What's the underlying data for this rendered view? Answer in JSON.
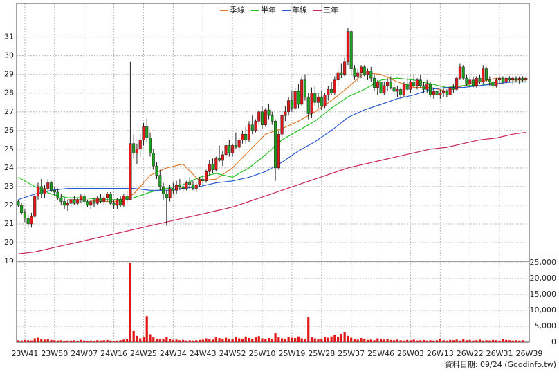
{
  "chart_data": {
    "type": "candlestick",
    "legend": [
      {
        "name": "季線",
        "color": "#e07828"
      },
      {
        "name": "半年",
        "color": "#22c322"
      },
      {
        "name": "年線",
        "color": "#2a5ad0"
      },
      {
        "name": "三年",
        "color": "#c8245e"
      }
    ],
    "source": "資料日期: 09/24 (Goodinfo.tw)",
    "up_color": "#e01818",
    "down_color": "#20a020",
    "xlim": [
      -0.5,
      155
    ],
    "xticks": [
      {
        "value": 2,
        "label": "23W41"
      },
      {
        "value": 11,
        "label": "23W50"
      },
      {
        "value": 20,
        "label": "24W07"
      },
      {
        "value": 29,
        "label": "24W16"
      },
      {
        "value": 38,
        "label": "24W25"
      },
      {
        "value": 47,
        "label": "24W34"
      },
      {
        "value": 56,
        "label": "24W43"
      },
      {
        "value": 65,
        "label": "24W52"
      },
      {
        "value": 74,
        "label": "25W10"
      },
      {
        "value": 83,
        "label": "25W19"
      },
      {
        "value": 92,
        "label": "25W28"
      },
      {
        "value": 101,
        "label": "25W37"
      },
      {
        "value": 110,
        "label": "25W46"
      },
      {
        "value": 119,
        "label": "26W03"
      },
      {
        "value": 128,
        "label": "26W13"
      },
      {
        "value": 137,
        "label": "26W22"
      },
      {
        "value": 146,
        "label": "26W31"
      },
      {
        "value": 155,
        "label": "26W39"
      }
    ],
    "ylim": [
      19,
      32.8
    ],
    "yticks": [
      19,
      20,
      21,
      22,
      23,
      24,
      25,
      26,
      27,
      28,
      29,
      30,
      31
    ],
    "y2lim": [
      0,
      25000
    ],
    "y2ticks": [
      {
        "value": 0,
        "label": "0"
      },
      {
        "value": 5000,
        "label": "5,000"
      },
      {
        "value": 10000,
        "label": "10,000"
      },
      {
        "value": 15000,
        "label": "15,000"
      },
      {
        "value": 20000,
        "label": "20,000"
      },
      {
        "value": 25000,
        "label": "25,000"
      }
    ],
    "grid": true,
    "ohlc": [
      [
        22.2,
        22.3,
        21.9,
        22.0
      ],
      [
        22.0,
        22.1,
        21.5,
        21.6
      ],
      [
        21.6,
        21.8,
        21.1,
        21.3
      ],
      [
        21.3,
        21.5,
        20.8,
        21.0
      ],
      [
        21.0,
        21.6,
        20.8,
        21.4
      ],
      [
        21.4,
        22.6,
        21.3,
        22.5
      ],
      [
        22.5,
        23.2,
        22.3,
        23.0
      ],
      [
        23.0,
        23.4,
        22.4,
        22.6
      ],
      [
        22.6,
        23.1,
        22.4,
        22.9
      ],
      [
        22.9,
        23.4,
        22.6,
        23.2
      ],
      [
        23.2,
        23.3,
        22.7,
        22.8
      ],
      [
        22.8,
        23.0,
        22.5,
        22.7
      ],
      [
        22.7,
        22.9,
        22.3,
        22.4
      ],
      [
        22.4,
        22.6,
        22.0,
        22.2
      ],
      [
        22.2,
        22.4,
        21.8,
        22.0
      ],
      [
        22.0,
        22.3,
        21.7,
        22.1
      ],
      [
        22.1,
        22.4,
        21.9,
        22.3
      ],
      [
        22.3,
        22.5,
        22.0,
        22.1
      ],
      [
        22.1,
        22.4,
        22.0,
        22.3
      ],
      [
        22.3,
        22.6,
        22.1,
        22.5
      ],
      [
        22.5,
        22.6,
        22.1,
        22.2
      ],
      [
        22.2,
        22.3,
        21.9,
        22.0
      ],
      [
        22.0,
        22.3,
        21.8,
        22.2
      ],
      [
        22.2,
        22.4,
        21.9,
        22.1
      ],
      [
        22.1,
        22.5,
        22.0,
        22.4
      ],
      [
        22.4,
        22.6,
        22.1,
        22.2
      ],
      [
        22.2,
        22.5,
        22.0,
        22.4
      ],
      [
        22.4,
        22.7,
        22.2,
        22.6
      ],
      [
        22.6,
        22.7,
        22.0,
        22.1
      ],
      [
        22.1,
        22.3,
        21.8,
        22.0
      ],
      [
        22.0,
        22.4,
        21.8,
        22.3
      ],
      [
        22.3,
        22.5,
        21.9,
        22.0
      ],
      [
        22.0,
        22.6,
        21.9,
        22.5
      ],
      [
        22.5,
        22.8,
        22.1,
        22.3
      ],
      [
        22.3,
        29.7,
        22.3,
        25.3
      ],
      [
        25.3,
        25.8,
        24.5,
        24.8
      ],
      [
        24.8,
        25.3,
        24.2,
        25.0
      ],
      [
        25.0,
        25.8,
        24.6,
        25.5
      ],
      [
        25.5,
        26.4,
        25.2,
        26.2
      ],
      [
        26.2,
        26.7,
        25.4,
        25.6
      ],
      [
        25.6,
        25.9,
        24.6,
        24.8
      ],
      [
        24.8,
        25.0,
        23.9,
        24.1
      ],
      [
        24.1,
        24.3,
        23.4,
        23.6
      ],
      [
        23.6,
        23.9,
        22.8,
        23.0
      ],
      [
        23.0,
        23.2,
        22.3,
        22.6
      ],
      [
        22.6,
        22.8,
        20.9,
        22.4
      ],
      [
        22.4,
        23.1,
        22.2,
        22.9
      ],
      [
        22.9,
        23.2,
        22.6,
        22.8
      ],
      [
        22.8,
        23.3,
        22.6,
        23.1
      ],
      [
        23.1,
        23.4,
        22.8,
        23.0
      ],
      [
        23.0,
        23.2,
        22.7,
        22.9
      ],
      [
        22.9,
        23.3,
        22.8,
        23.2
      ],
      [
        23.2,
        23.5,
        22.9,
        23.1
      ],
      [
        23.1,
        23.3,
        22.8,
        22.9
      ],
      [
        22.9,
        23.2,
        22.7,
        23.1
      ],
      [
        23.1,
        23.5,
        23.0,
        23.4
      ],
      [
        23.4,
        23.6,
        23.1,
        23.3
      ],
      [
        23.3,
        23.9,
        23.2,
        23.8
      ],
      [
        23.8,
        24.4,
        23.6,
        24.2
      ],
      [
        24.2,
        24.5,
        23.7,
        23.9
      ],
      [
        23.9,
        24.6,
        23.8,
        24.5
      ],
      [
        24.5,
        25.2,
        24.3,
        24.4
      ],
      [
        24.4,
        24.9,
        24.1,
        24.7
      ],
      [
        24.7,
        25.4,
        24.5,
        25.2
      ],
      [
        25.2,
        25.5,
        24.6,
        24.8
      ],
      [
        24.8,
        25.3,
        24.6,
        25.2
      ],
      [
        25.2,
        25.9,
        25.0,
        25.1
      ],
      [
        25.1,
        25.6,
        24.9,
        25.5
      ],
      [
        25.5,
        26.0,
        25.3,
        25.8
      ],
      [
        25.8,
        26.2,
        25.3,
        25.5
      ],
      [
        25.5,
        26.5,
        25.4,
        26.3
      ],
      [
        26.3,
        26.8,
        25.8,
        26.0
      ],
      [
        26.0,
        26.6,
        25.9,
        26.5
      ],
      [
        26.5,
        27.1,
        26.3,
        27.0
      ],
      [
        27.0,
        27.3,
        26.1,
        26.3
      ],
      [
        26.3,
        27.2,
        26.2,
        27.1
      ],
      [
        27.1,
        27.4,
        26.6,
        26.8
      ],
      [
        26.8,
        27.0,
        26.3,
        26.5
      ],
      [
        26.5,
        26.6,
        23.3,
        24.0
      ],
      [
        24.0,
        26.0,
        23.9,
        25.8
      ],
      [
        25.8,
        27.0,
        25.6,
        26.8
      ],
      [
        26.8,
        27.3,
        26.5,
        27.0
      ],
      [
        27.0,
        27.8,
        26.8,
        27.6
      ],
      [
        27.6,
        28.1,
        27.0,
        27.2
      ],
      [
        27.2,
        28.3,
        27.1,
        28.1
      ],
      [
        28.1,
        28.5,
        27.2,
        27.4
      ],
      [
        27.4,
        28.9,
        27.3,
        28.7
      ],
      [
        28.7,
        29.0,
        27.6,
        27.8
      ],
      [
        27.8,
        28.0,
        26.6,
        26.9
      ],
      [
        26.9,
        28.3,
        26.7,
        28.0
      ],
      [
        28.0,
        28.4,
        27.3,
        27.5
      ],
      [
        27.5,
        28.0,
        27.2,
        27.8
      ],
      [
        27.8,
        28.1,
        27.1,
        27.3
      ],
      [
        27.3,
        28.0,
        27.2,
        27.9
      ],
      [
        27.9,
        28.4,
        27.6,
        28.2
      ],
      [
        28.2,
        28.6,
        27.9,
        28.0
      ],
      [
        28.0,
        28.9,
        27.9,
        28.7
      ],
      [
        28.7,
        29.3,
        28.4,
        29.1
      ],
      [
        29.1,
        29.6,
        28.8,
        29.0
      ],
      [
        29.0,
        29.9,
        28.9,
        29.7
      ],
      [
        29.7,
        31.5,
        29.5,
        31.3
      ],
      [
        31.3,
        31.4,
        29.0,
        29.3
      ],
      [
        29.3,
        29.5,
        28.7,
        28.9
      ],
      [
        28.9,
        29.3,
        28.6,
        29.1
      ],
      [
        29.1,
        29.5,
        28.8,
        29.4
      ],
      [
        29.4,
        29.5,
        28.9,
        29.0
      ],
      [
        29.0,
        29.3,
        28.7,
        29.2
      ],
      [
        29.2,
        29.4,
        28.6,
        28.8
      ],
      [
        28.8,
        29.0,
        28.1,
        28.3
      ],
      [
        28.3,
        28.7,
        27.9,
        28.6
      ],
      [
        28.6,
        28.8,
        27.9,
        28.0
      ],
      [
        28.0,
        28.6,
        27.9,
        28.4
      ],
      [
        28.4,
        28.8,
        28.1,
        28.6
      ],
      [
        28.6,
        28.9,
        28.2,
        28.3
      ],
      [
        28.3,
        28.6,
        27.9,
        28.1
      ],
      [
        28.1,
        28.4,
        27.8,
        28.2
      ],
      [
        28.2,
        28.3,
        27.7,
        27.9
      ],
      [
        27.9,
        28.6,
        27.8,
        28.5
      ],
      [
        28.5,
        28.9,
        28.1,
        28.2
      ],
      [
        28.2,
        28.7,
        28.0,
        28.6
      ],
      [
        28.6,
        29.0,
        28.3,
        28.4
      ],
      [
        28.4,
        28.8,
        28.2,
        28.7
      ],
      [
        28.7,
        29.0,
        28.3,
        28.4
      ],
      [
        28.4,
        28.6,
        28.0,
        28.2
      ],
      [
        28.2,
        28.7,
        28.0,
        28.5
      ],
      [
        28.5,
        28.6,
        27.8,
        27.9
      ],
      [
        27.9,
        28.3,
        27.7,
        28.1
      ],
      [
        28.1,
        28.2,
        27.7,
        27.9
      ],
      [
        27.9,
        28.2,
        27.7,
        28.0
      ],
      [
        28.0,
        28.3,
        27.8,
        28.1
      ],
      [
        28.1,
        28.2,
        27.8,
        27.9
      ],
      [
        27.9,
        28.4,
        27.8,
        28.3
      ],
      [
        28.3,
        28.5,
        28.0,
        28.2
      ],
      [
        28.2,
        28.9,
        28.1,
        28.8
      ],
      [
        28.8,
        29.6,
        28.7,
        29.4
      ],
      [
        29.4,
        29.5,
        28.7,
        28.8
      ],
      [
        28.8,
        29.0,
        28.4,
        28.5
      ],
      [
        28.5,
        28.9,
        28.3,
        28.7
      ],
      [
        28.7,
        28.9,
        28.3,
        28.4
      ],
      [
        28.4,
        28.9,
        28.3,
        28.8
      ],
      [
        28.8,
        29.0,
        28.5,
        28.6
      ],
      [
        28.6,
        29.5,
        28.5,
        29.3
      ],
      [
        29.3,
        29.4,
        28.6,
        28.7
      ],
      [
        28.7,
        28.9,
        28.4,
        28.6
      ],
      [
        28.6,
        28.8,
        28.2,
        28.4
      ],
      [
        28.4,
        28.8,
        28.3,
        28.7
      ],
      [
        28.7,
        28.9,
        28.5,
        28.8
      ],
      [
        28.8,
        28.9,
        28.5,
        28.6
      ],
      [
        28.6,
        28.9,
        28.5,
        28.8
      ],
      [
        28.8,
        28.9,
        28.6,
        28.7
      ],
      [
        28.7,
        28.9,
        28.5,
        28.8
      ],
      [
        28.8,
        28.9,
        28.6,
        28.7
      ],
      [
        28.7,
        28.9,
        28.5,
        28.8
      ],
      [
        28.8,
        28.9,
        28.6,
        28.7
      ],
      [
        28.7,
        28.9,
        28.6,
        28.8
      ]
    ],
    "volume": [
      600,
      500,
      700,
      600,
      500,
      1200,
      1400,
      900,
      800,
      1000,
      700,
      600,
      500,
      600,
      400,
      500,
      500,
      600,
      400,
      700,
      500,
      400,
      500,
      400,
      600,
      500,
      600,
      700,
      500,
      400,
      500,
      600,
      800,
      1000,
      25000,
      3500,
      2000,
      1200,
      1500,
      8200,
      2500,
      1500,
      1000,
      900,
      1100,
      1600,
      900,
      700,
      800,
      600,
      700,
      500,
      600,
      500,
      600,
      700,
      800,
      1200,
      900,
      800,
      1500,
      1300,
      900,
      1400,
      1100,
      900,
      1600,
      1200,
      1000,
      1800,
      1300,
      1100,
      1500,
      1900,
      1200,
      1000,
      1300,
      1100,
      2800,
      1500,
      1200,
      1100,
      1600,
      1400,
      1300,
      1800,
      1200,
      1000,
      7800,
      1500,
      1200,
      900,
      1100,
      1600,
      1400,
      1800,
      2200,
      1700,
      2600,
      3200,
      2000,
      1400,
      900,
      800,
      1300,
      900,
      700,
      800,
      600,
      1200,
      1000,
      800,
      900,
      700,
      600,
      800,
      600,
      500,
      700,
      600,
      800,
      500,
      600,
      700,
      500,
      600,
      500,
      600,
      1100,
      600,
      500,
      700,
      600,
      800,
      500,
      900,
      600,
      700,
      500,
      600,
      800,
      500,
      600,
      500,
      700,
      600,
      500,
      900,
      700,
      600,
      500,
      600,
      500,
      600
    ]
  },
  "ma_x": [
    0,
    5,
    10,
    15,
    20,
    25,
    30,
    35,
    40,
    45,
    50,
    55,
    60,
    65,
    70,
    75,
    80,
    85,
    90,
    95,
    100,
    105,
    110,
    115,
    120,
    125,
    130,
    135,
    140,
    145,
    150,
    154
  ],
  "ma_series": [
    {
      "values": [
        null,
        null,
        null,
        22.3,
        22.3,
        22.2,
        22.2,
        22.6,
        23.6,
        24.0,
        24.2,
        23.3,
        23.4,
        24.0,
        24.9,
        25.8,
        26.1,
        26.5,
        27.0,
        27.6,
        28.3,
        29.1,
        29.0,
        28.6,
        28.3,
        28.3,
        28.1,
        28.4,
        28.6,
        28.8,
        28.7,
        28.7
      ]
    },
    {
      "values": [
        23.5,
        23.0,
        22.6,
        22.4,
        22.4,
        22.3,
        22.3,
        22.4,
        22.7,
        22.9,
        23.1,
        23.5,
        23.7,
        23.5,
        24.0,
        24.7,
        25.5,
        26.0,
        26.5,
        27.2,
        27.8,
        28.2,
        28.7,
        28.8,
        28.7,
        28.5,
        28.3,
        28.4,
        28.4,
        28.6,
        28.6,
        28.6
      ]
    },
    {
      "values": [
        22.3,
        22.6,
        22.8,
        22.9,
        22.9,
        22.9,
        22.9,
        22.9,
        22.8,
        22.8,
        22.9,
        23.0,
        23.2,
        23.3,
        23.5,
        23.8,
        24.3,
        24.9,
        25.4,
        26.0,
        26.7,
        27.1,
        27.4,
        27.7,
        27.9,
        28.2,
        28.3,
        28.3,
        28.4,
        28.5,
        28.6,
        28.6
      ]
    },
    {
      "values": [
        19.4,
        19.5,
        19.7,
        19.9,
        20.1,
        20.3,
        20.5,
        20.7,
        20.9,
        21.1,
        21.3,
        21.5,
        21.7,
        21.9,
        22.2,
        22.5,
        22.8,
        23.1,
        23.4,
        23.7,
        24.0,
        24.2,
        24.4,
        24.6,
        24.8,
        25.0,
        25.1,
        25.3,
        25.5,
        25.6,
        25.8,
        25.9
      ]
    }
  ]
}
